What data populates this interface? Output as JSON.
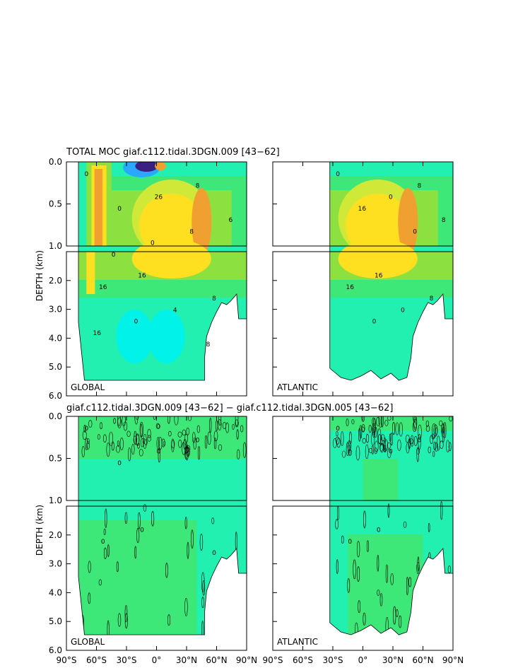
{
  "chart_data": {
    "type": "heatmap",
    "title_top": "TOTAL MOC giaf.c112.tidal.3DGN.009 [43−62]",
    "title_bottom": "giaf.c112.tidal.3DGN.009 [43−62] − giaf.c112.tidal.3DGN.005 [43−62]",
    "ylabel": "DEPTH (km)",
    "y_ticks_upper": [
      "0.0",
      "0.5",
      "1.0"
    ],
    "y_ticks_lower": [
      "2.0",
      "3.0",
      "4.0",
      "5.0",
      "6.0"
    ],
    "x_ticks": [
      "90°S",
      "60°S",
      "30°S",
      "0°",
      "30°N",
      "60°N",
      "90°N"
    ],
    "x_range": [
      -90,
      90
    ],
    "y_range_upper_km": [
      0,
      1.0
    ],
    "y_range_lower_km": [
      1.0,
      6.0
    ],
    "basins": [
      "GLOBAL",
      "ATLANTIC"
    ],
    "atlantic_start_lat": -33,
    "panels": [
      {
        "id": "total-global",
        "basin": "GLOBAL",
        "contour_labels": [
          "0",
          "16",
          "8",
          "16",
          "26",
          "8",
          "0",
          "4",
          "6",
          "0",
          "8",
          "16",
          "0",
          "8",
          "0"
        ]
      },
      {
        "id": "total-atlantic",
        "basin": "ATLANTIC",
        "contour_labels": [
          "0",
          "16",
          "8",
          "16",
          "0",
          "8",
          "16",
          "0",
          "8",
          "0",
          "0"
        ]
      },
      {
        "id": "diff-global",
        "basin": "GLOBAL",
        "contour_labels": [
          "0",
          "0",
          "0",
          "0",
          "0",
          "0",
          "0"
        ]
      },
      {
        "id": "diff-atlantic",
        "basin": "ATLANTIC",
        "contour_labels": [
          "0",
          "0",
          "0",
          "0",
          "0"
        ]
      }
    ],
    "colors": {
      "strong_neg": "#3a2080",
      "neg": "#2aa8ff",
      "light_neg": "#00f2e8",
      "zero": "#22f0b0",
      "light_pos": "#3ee878",
      "pos": "#8ce040",
      "mid_pos": "#d0e838",
      "high_pos": "#ffe020",
      "max_pos": "#f0a030"
    }
  }
}
